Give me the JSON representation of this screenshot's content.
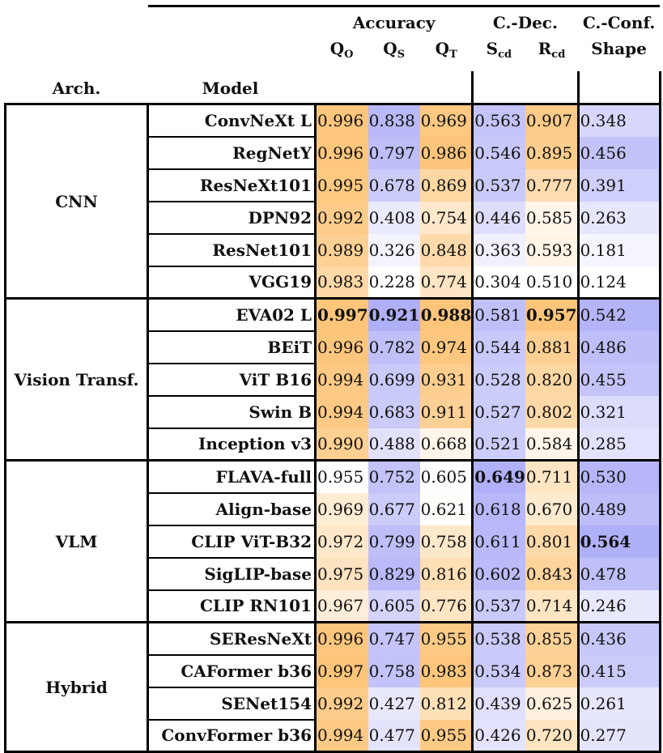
{
  "header": {
    "arch": "Arch.",
    "model": "Model",
    "accuracy": "Accuracy",
    "cdec": "C.-Dec.",
    "cconf": "C.-Conf.",
    "cols": [
      {
        "main": "Q",
        "sub": "O"
      },
      {
        "main": "Q",
        "sub": "S"
      },
      {
        "main": "Q",
        "sub": "T"
      },
      {
        "main": "S",
        "sub": "cd"
      },
      {
        "main": "R",
        "sub": "cd"
      },
      {
        "main": "Shape",
        "sub": ""
      }
    ]
  },
  "colors": {
    "orange": "#fdc57a",
    "blue": "#b0b0f8"
  },
  "column_scale": [
    "orange",
    "blue",
    "orange",
    "blue",
    "orange",
    "blue"
  ],
  "groups": [
    {
      "arch": "CNN",
      "rows": [
        {
          "model": "ConvNeXt L",
          "values": [
            "0.996",
            "0.838",
            "0.969",
            "0.563",
            "0.907",
            "0.348"
          ],
          "bold": []
        },
        {
          "model": "RegNetY",
          "values": [
            "0.996",
            "0.797",
            "0.986",
            "0.546",
            "0.895",
            "0.456"
          ],
          "bold": []
        },
        {
          "model": "ResNeXt101",
          "values": [
            "0.995",
            "0.678",
            "0.869",
            "0.537",
            "0.777",
            "0.391"
          ],
          "bold": []
        },
        {
          "model": "DPN92",
          "values": [
            "0.992",
            "0.408",
            "0.754",
            "0.446",
            "0.585",
            "0.263"
          ],
          "bold": []
        },
        {
          "model": "ResNet101",
          "values": [
            "0.989",
            "0.326",
            "0.848",
            "0.363",
            "0.593",
            "0.181"
          ],
          "bold": []
        },
        {
          "model": "VGG19",
          "values": [
            "0.983",
            "0.228",
            "0.774",
            "0.304",
            "0.510",
            "0.124"
          ],
          "bold": []
        }
      ]
    },
    {
      "arch": "Vision Transf.",
      "rows": [
        {
          "model": "EVA02 L",
          "values": [
            "0.997",
            "0.921",
            "0.988",
            "0.581",
            "0.957",
            "0.542"
          ],
          "bold": [
            0,
            1,
            2,
            4
          ]
        },
        {
          "model": "BEiT",
          "values": [
            "0.996",
            "0.782",
            "0.974",
            "0.544",
            "0.881",
            "0.486"
          ],
          "bold": []
        },
        {
          "model": "ViT B16",
          "values": [
            "0.994",
            "0.699",
            "0.931",
            "0.528",
            "0.820",
            "0.455"
          ],
          "bold": []
        },
        {
          "model": "Swin B",
          "values": [
            "0.994",
            "0.683",
            "0.911",
            "0.527",
            "0.802",
            "0.321"
          ],
          "bold": []
        },
        {
          "model": "Inception v3",
          "values": [
            "0.990",
            "0.488",
            "0.668",
            "0.521",
            "0.584",
            "0.285"
          ],
          "bold": []
        }
      ]
    },
    {
      "arch": "VLM",
      "rows": [
        {
          "model": "FLAVA-full",
          "values": [
            "0.955",
            "0.752",
            "0.605",
            "0.649",
            "0.711",
            "0.530"
          ],
          "bold": [
            3
          ]
        },
        {
          "model": "Align-base",
          "values": [
            "0.969",
            "0.677",
            "0.621",
            "0.618",
            "0.670",
            "0.489"
          ],
          "bold": []
        },
        {
          "model": "CLIP ViT-B32",
          "values": [
            "0.972",
            "0.799",
            "0.758",
            "0.611",
            "0.801",
            "0.564"
          ],
          "bold": [
            5
          ]
        },
        {
          "model": "SigLIP-base",
          "values": [
            "0.975",
            "0.829",
            "0.816",
            "0.602",
            "0.843",
            "0.478"
          ],
          "bold": []
        },
        {
          "model": "CLIP RN101",
          "values": [
            "0.967",
            "0.605",
            "0.776",
            "0.537",
            "0.714",
            "0.246"
          ],
          "bold": []
        }
      ]
    },
    {
      "arch": "Hybrid",
      "rows": [
        {
          "model": "SEResNeXt",
          "values": [
            "0.996",
            "0.747",
            "0.955",
            "0.538",
            "0.855",
            "0.436"
          ],
          "bold": []
        },
        {
          "model": "CAFormer b36",
          "values": [
            "0.997",
            "0.758",
            "0.983",
            "0.534",
            "0.873",
            "0.415"
          ],
          "bold": []
        },
        {
          "model": "SENet154",
          "values": [
            "0.992",
            "0.427",
            "0.812",
            "0.439",
            "0.625",
            "0.261"
          ],
          "bold": []
        },
        {
          "model": "ConvFormer b36",
          "values": [
            "0.994",
            "0.477",
            "0.955",
            "0.426",
            "0.720",
            "0.277"
          ],
          "bold": []
        }
      ]
    }
  ]
}
